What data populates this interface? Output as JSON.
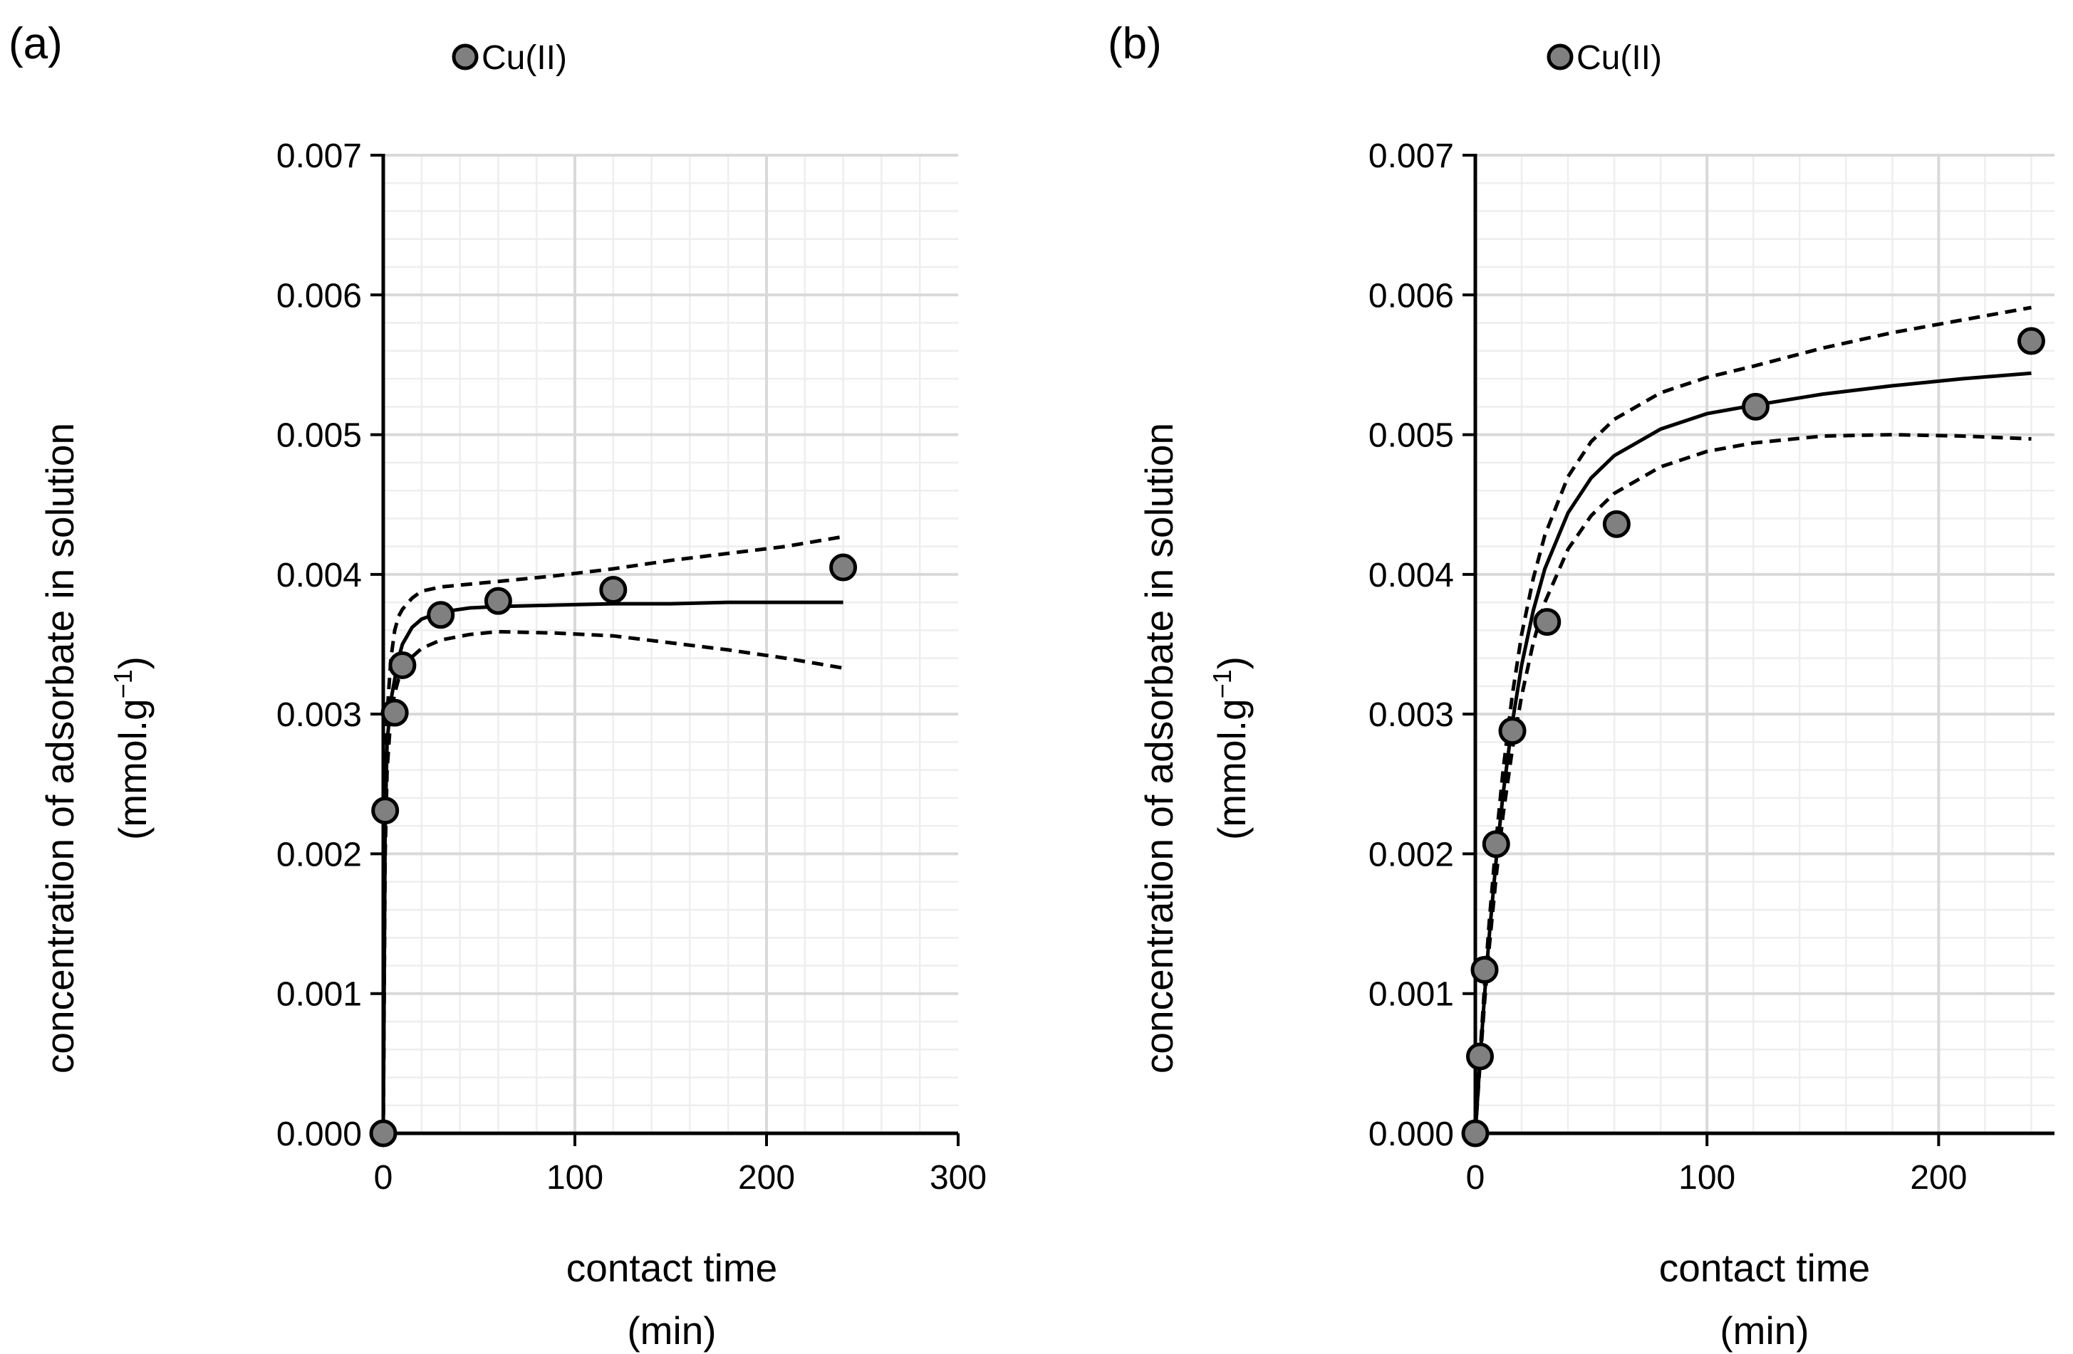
{
  "chart_data": [
    {
      "type": "scatter",
      "panel_label": "(a)",
      "legend": [
        {
          "label": "Cu(II)",
          "marker": "circle",
          "color": "#808080"
        }
      ],
      "legend_position": "top",
      "xlabel_line1": "contact time",
      "xlabel_line2": "(min)",
      "ylabel_line1": "concentration of adsorbate in solution",
      "ylabel_line2_pre": "(mmol.g",
      "ylabel_line2_sup": "−1",
      "ylabel_line2_post": ")",
      "xlim": [
        0,
        300
      ],
      "ylim": [
        0,
        0.007
      ],
      "x_ticks": [
        0,
        100,
        200,
        300
      ],
      "x_tick_labels": [
        "0",
        "100",
        "200",
        "300"
      ],
      "y_ticks": [
        0,
        0.001,
        0.002,
        0.003,
        0.004,
        0.005,
        0.006,
        0.007
      ],
      "y_tick_labels": [
        "0.000",
        "0.001",
        "0.002",
        "0.003",
        "0.004",
        "0.005",
        "0.006",
        "0.007"
      ],
      "grid": true,
      "series": [
        {
          "name": "Cu(II)",
          "x": [
            0,
            1,
            6,
            10,
            30,
            60,
            120,
            240
          ],
          "y": [
            0.0,
            0.00231,
            0.00301,
            0.00335,
            0.00371,
            0.00381,
            0.00389,
            0.00405
          ]
        }
      ],
      "fits": [
        {
          "style": "solid",
          "x": [
            0,
            1,
            2,
            4,
            6,
            8,
            10,
            15,
            20,
            30,
            45,
            60,
            90,
            120,
            150,
            180,
            210,
            240
          ],
          "y": [
            0,
            0.0022,
            0.0028,
            0.0031,
            0.00325,
            0.0034,
            0.0035,
            0.00362,
            0.00368,
            0.00373,
            0.00376,
            0.00377,
            0.00378,
            0.00379,
            0.00379,
            0.0038,
            0.0038,
            0.0038
          ]
        },
        {
          "style": "dashed",
          "x": [
            0,
            1,
            2,
            4,
            6,
            8,
            10,
            15,
            20,
            30,
            45,
            60,
            90,
            120,
            150,
            180,
            210,
            240
          ],
          "y": [
            0,
            0.0024,
            0.003,
            0.0034,
            0.0036,
            0.0037,
            0.00375,
            0.00383,
            0.00388,
            0.00391,
            0.00393,
            0.00395,
            0.00399,
            0.00404,
            0.0041,
            0.00415,
            0.0042,
            0.00427
          ]
        },
        {
          "style": "dashed",
          "x": [
            0,
            1,
            2,
            4,
            6,
            8,
            10,
            15,
            20,
            30,
            45,
            60,
            90,
            120,
            150,
            180,
            210,
            240
          ],
          "y": [
            0,
            0.002,
            0.0026,
            0.003,
            0.00315,
            0.00325,
            0.0033,
            0.00341,
            0.00347,
            0.00353,
            0.00357,
            0.00359,
            0.00358,
            0.00356,
            0.00351,
            0.00346,
            0.0034,
            0.00333
          ]
        }
      ]
    },
    {
      "type": "scatter",
      "panel_label": "(b)",
      "legend": [
        {
          "label": "Cu(II)",
          "marker": "circle",
          "color": "#808080"
        }
      ],
      "legend_position": "top",
      "xlabel_line1": "contact time",
      "xlabel_line2": "(min)",
      "ylabel_line1": "concentration of adsorbate in solution",
      "ylabel_line2_pre": "(mmol.g",
      "ylabel_line2_sup": "−1",
      "ylabel_line2_post": ")",
      "xlim": [
        0,
        250
      ],
      "ylim": [
        0,
        0.007
      ],
      "x_ticks": [
        0,
        100,
        200
      ],
      "x_tick_labels": [
        "0",
        "100",
        "200"
      ],
      "y_ticks": [
        0,
        0.001,
        0.002,
        0.003,
        0.004,
        0.005,
        0.006,
        0.007
      ],
      "y_tick_labels": [
        "0.000",
        "0.001",
        "0.002",
        "0.003",
        "0.004",
        "0.005",
        "0.006",
        "0.007"
      ],
      "grid": true,
      "series": [
        {
          "name": "Cu(II)",
          "x": [
            0,
            2,
            4,
            9,
            16,
            31,
            61,
            121,
            240
          ],
          "y": [
            0.0,
            0.00055,
            0.00117,
            0.00207,
            0.00288,
            0.00366,
            0.00436,
            0.0052,
            0.00567
          ]
        }
      ],
      "fits": [
        {
          "style": "solid",
          "x": [
            0,
            2,
            4,
            6,
            9,
            12,
            16,
            20,
            25,
            30,
            40,
            50,
            60,
            80,
            100,
            120,
            150,
            180,
            210,
            240
          ],
          "y": [
            0,
            0.00052,
            0.00099,
            0.00141,
            0.00196,
            0.00243,
            0.00294,
            0.00335,
            0.00374,
            0.00404,
            0.00444,
            0.00469,
            0.00485,
            0.00504,
            0.00515,
            0.00521,
            0.00529,
            0.00535,
            0.0054,
            0.00544
          ]
        },
        {
          "style": "dashed",
          "x": [
            0,
            2,
            4,
            6,
            9,
            12,
            16,
            20,
            25,
            30,
            40,
            50,
            60,
            80,
            100,
            120,
            150,
            180,
            210,
            240
          ],
          "y": [
            0,
            0.00055,
            0.00106,
            0.00151,
            0.0021,
            0.0026,
            0.00314,
            0.00357,
            0.00397,
            0.00428,
            0.0047,
            0.00495,
            0.00511,
            0.0053,
            0.00541,
            0.00549,
            0.00562,
            0.00573,
            0.00582,
            0.00591
          ]
        },
        {
          "style": "dashed",
          "x": [
            0,
            2,
            4,
            6,
            9,
            12,
            16,
            20,
            25,
            30,
            40,
            50,
            60,
            80,
            100,
            120,
            150,
            180,
            210,
            240
          ],
          "y": [
            0,
            0.00049,
            0.00094,
            0.00133,
            0.00184,
            0.00228,
            0.00275,
            0.00313,
            0.00351,
            0.0038,
            0.00418,
            0.00442,
            0.00458,
            0.00477,
            0.00488,
            0.00494,
            0.00499,
            0.005,
            0.00499,
            0.00497
          ]
        }
      ]
    }
  ]
}
